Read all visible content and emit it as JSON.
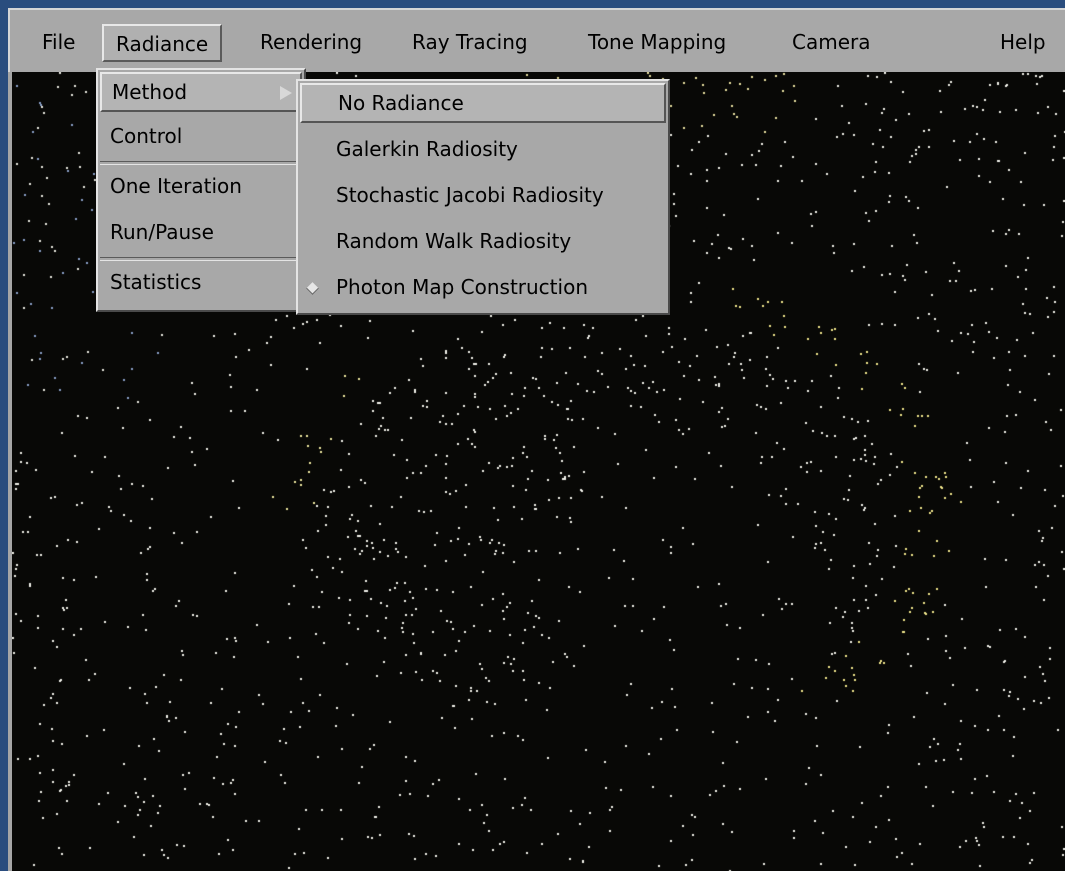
{
  "menubar": {
    "items": [
      {
        "label": "File"
      },
      {
        "label": "Radiance"
      },
      {
        "label": "Rendering"
      },
      {
        "label": "Ray Tracing"
      },
      {
        "label": "Tone Mapping"
      },
      {
        "label": "Camera"
      },
      {
        "label": "Help"
      }
    ],
    "active": "Radiance"
  },
  "radiance_menu": {
    "items": [
      {
        "label": "Method",
        "has_submenu": true
      },
      {
        "label": "Control"
      },
      {
        "label": "One Iteration"
      },
      {
        "label": "Run/Pause"
      },
      {
        "label": "Statistics"
      }
    ]
  },
  "method_submenu": {
    "items": [
      {
        "label": "No Radiance"
      },
      {
        "label": "Galerkin Radiosity"
      },
      {
        "label": "Stochastic Jacobi Radiosity"
      },
      {
        "label": "Random Walk Radiosity"
      },
      {
        "label": "Photon Map Construction"
      }
    ],
    "highlighted": "No Radiance",
    "checked": "Photon Map Construction"
  },
  "colors": {
    "desktop": "#2a4d7e",
    "menu_bg": "#a8a8a8",
    "photon_white": "#f2f2ea",
    "photon_yellow": "#f0e68c",
    "photon_blue": "#8aa0c8"
  },
  "icons": [
    "submenu-arrow-icon",
    "radio-diamond-icon"
  ]
}
